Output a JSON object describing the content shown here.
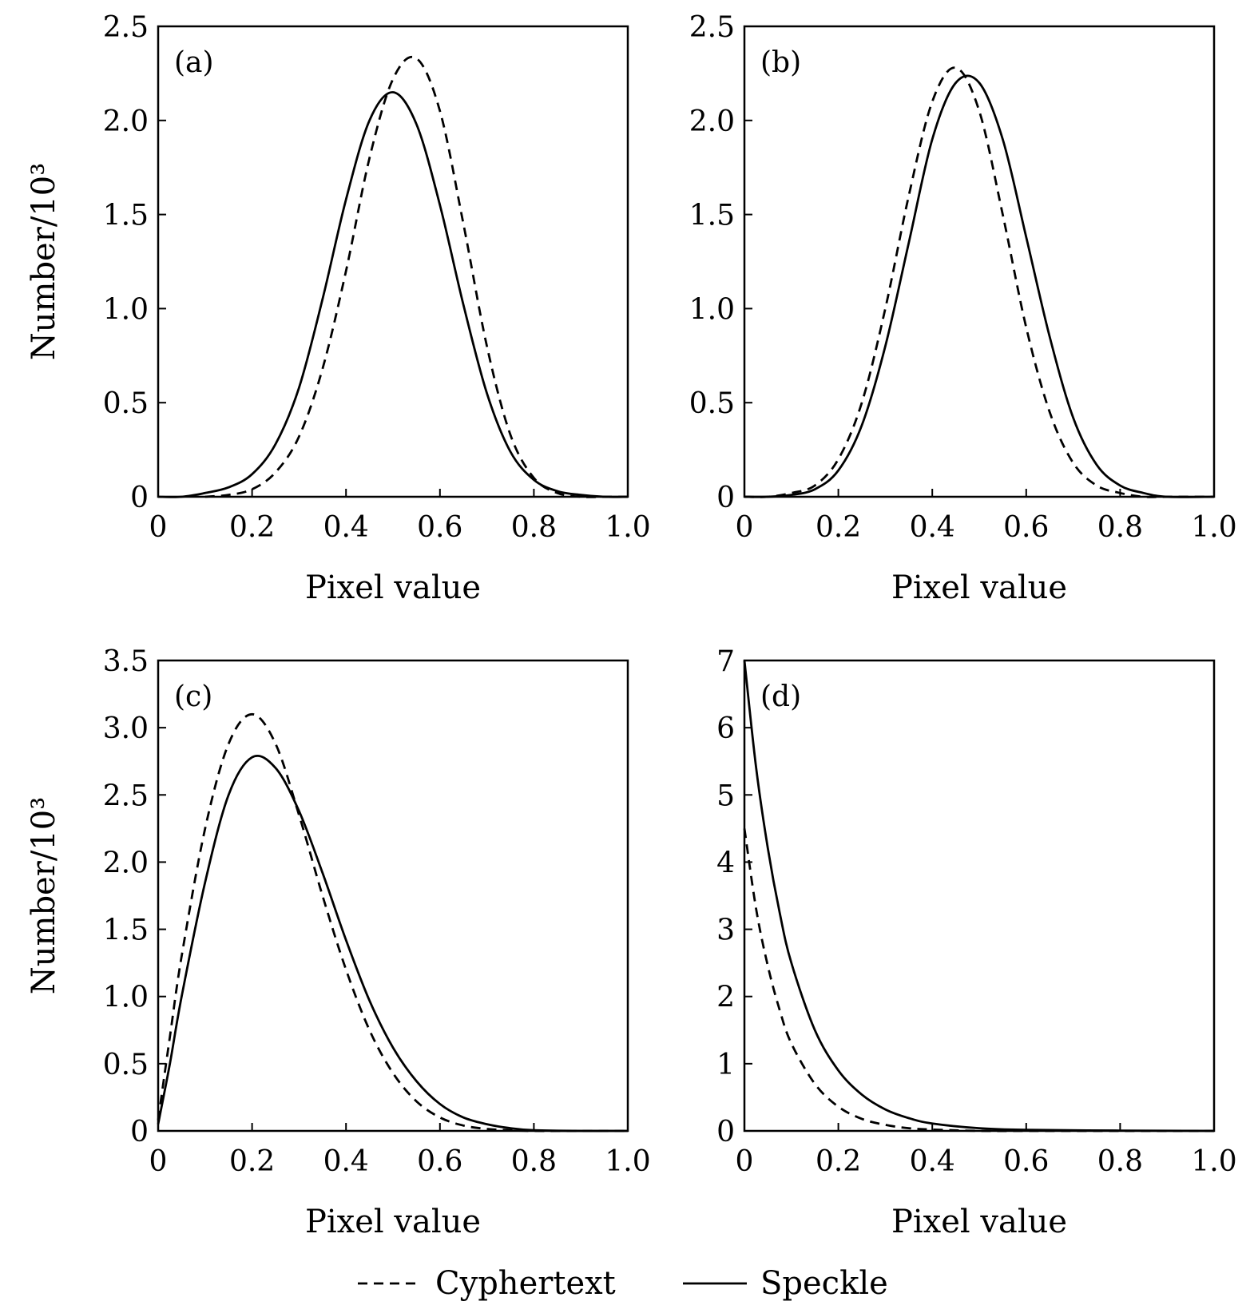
{
  "legend": {
    "cyphertext_label": "Cyphertext",
    "speckle_label": "Speckle"
  },
  "chart_data": [
    {
      "type": "line",
      "panel_label": "(a)",
      "xlabel": "Pixel value",
      "ylabel": "Number/10³",
      "xlim": [
        0,
        1.0
      ],
      "ylim": [
        0,
        2.5
      ],
      "x_ticks": [
        0,
        0.2,
        0.4,
        0.6,
        0.8,
        1.0
      ],
      "x_tick_labels": [
        "0",
        "0.2",
        "0.4",
        "0.6",
        "0.8",
        "1.0"
      ],
      "y_ticks": [
        0,
        0.5,
        1.0,
        1.5,
        2.0,
        2.5
      ],
      "y_tick_labels": [
        "0",
        "0.5",
        "1.0",
        "1.5",
        "2.0",
        "2.5"
      ],
      "series": [
        {
          "name": "Cyphertext",
          "style": "dashed",
          "x": [
            0.1,
            0.15,
            0.2,
            0.25,
            0.3,
            0.35,
            0.4,
            0.45,
            0.5,
            0.55,
            0.6,
            0.65,
            0.7,
            0.75,
            0.8,
            0.85,
            0.9,
            0.95,
            1.0
          ],
          "y": [
            0.0,
            0.01,
            0.04,
            0.13,
            0.32,
            0.68,
            1.2,
            1.8,
            2.22,
            2.33,
            2.05,
            1.45,
            0.8,
            0.33,
            0.1,
            0.02,
            0.0,
            0.0,
            0.0
          ]
        },
        {
          "name": "Speckle",
          "style": "solid",
          "x": [
            0.0,
            0.05,
            0.1,
            0.15,
            0.2,
            0.25,
            0.3,
            0.35,
            0.4,
            0.45,
            0.5,
            0.55,
            0.6,
            0.65,
            0.7,
            0.75,
            0.8,
            0.85,
            0.9,
            0.95,
            1.0
          ],
          "y": [
            0.0,
            0.0,
            0.02,
            0.05,
            0.12,
            0.28,
            0.58,
            1.05,
            1.58,
            2.0,
            2.15,
            1.98,
            1.55,
            1.02,
            0.55,
            0.24,
            0.09,
            0.03,
            0.01,
            0.0,
            0.0
          ]
        }
      ]
    },
    {
      "type": "line",
      "panel_label": "(b)",
      "xlabel": "Pixel value",
      "ylabel": "",
      "xlim": [
        0,
        1.0
      ],
      "ylim": [
        0,
        2.5
      ],
      "x_ticks": [
        0,
        0.2,
        0.4,
        0.6,
        0.8,
        1.0
      ],
      "x_tick_labels": [
        "0",
        "0.2",
        "0.4",
        "0.6",
        "0.8",
        "1.0"
      ],
      "y_ticks": [
        0,
        0.5,
        1.0,
        1.5,
        2.0,
        2.5
      ],
      "y_tick_labels": [
        "0",
        "0.5",
        "1.0",
        "1.5",
        "2.0",
        "2.5"
      ],
      "series": [
        {
          "name": "Cyphertext",
          "style": "dashed",
          "x": [
            0.0,
            0.05,
            0.1,
            0.15,
            0.2,
            0.25,
            0.3,
            0.35,
            0.4,
            0.45,
            0.5,
            0.55,
            0.6,
            0.65,
            0.7,
            0.75,
            0.8,
            0.85,
            0.9,
            1.0
          ],
          "y": [
            0.0,
            0.0,
            0.02,
            0.06,
            0.2,
            0.5,
            1.0,
            1.6,
            2.1,
            2.28,
            2.05,
            1.5,
            0.9,
            0.45,
            0.18,
            0.06,
            0.02,
            0.0,
            0.0,
            0.0
          ]
        },
        {
          "name": "Speckle",
          "style": "solid",
          "x": [
            0.0,
            0.05,
            0.1,
            0.15,
            0.2,
            0.25,
            0.3,
            0.35,
            0.4,
            0.45,
            0.5,
            0.55,
            0.6,
            0.65,
            0.7,
            0.75,
            0.8,
            0.85,
            0.9,
            1.0
          ],
          "y": [
            0.0,
            0.0,
            0.01,
            0.04,
            0.14,
            0.38,
            0.8,
            1.35,
            1.9,
            2.2,
            2.2,
            1.9,
            1.38,
            0.85,
            0.42,
            0.17,
            0.06,
            0.02,
            0.0,
            0.0
          ]
        }
      ]
    },
    {
      "type": "line",
      "panel_label": "(c)",
      "xlabel": "Pixel value",
      "ylabel": "Number/10³",
      "xlim": [
        0,
        1.0
      ],
      "ylim": [
        0,
        3.5
      ],
      "x_ticks": [
        0,
        0.2,
        0.4,
        0.6,
        0.8,
        1.0
      ],
      "x_tick_labels": [
        "0",
        "0.2",
        "0.4",
        "0.6",
        "0.8",
        "1.0"
      ],
      "y_ticks": [
        0,
        0.5,
        1.0,
        1.5,
        2.0,
        2.5,
        3.0,
        3.5
      ],
      "y_tick_labels": [
        "0",
        "0.5",
        "1.0",
        "1.5",
        "2.0",
        "2.5",
        "3.0",
        "3.5"
      ],
      "series": [
        {
          "name": "Cyphertext",
          "style": "dashed",
          "x": [
            0.0,
            0.025,
            0.05,
            0.1,
            0.15,
            0.2,
            0.25,
            0.3,
            0.35,
            0.4,
            0.45,
            0.5,
            0.55,
            0.6,
            0.65,
            0.7,
            0.75,
            0.8,
            0.9,
            1.0
          ],
          "y": [
            0.08,
            0.7,
            1.3,
            2.25,
            2.88,
            3.1,
            2.88,
            2.35,
            1.75,
            1.2,
            0.75,
            0.43,
            0.22,
            0.1,
            0.04,
            0.015,
            0.005,
            0.0,
            0.0,
            0.0
          ]
        },
        {
          "name": "Speckle",
          "style": "solid",
          "x": [
            0.0,
            0.025,
            0.05,
            0.1,
            0.15,
            0.2,
            0.25,
            0.3,
            0.35,
            0.4,
            0.45,
            0.5,
            0.55,
            0.6,
            0.65,
            0.7,
            0.75,
            0.8,
            0.9,
            1.0
          ],
          "y": [
            0.05,
            0.5,
            1.0,
            1.85,
            2.5,
            2.78,
            2.7,
            2.38,
            1.92,
            1.42,
            0.97,
            0.62,
            0.37,
            0.2,
            0.1,
            0.05,
            0.02,
            0.005,
            0.0,
            0.0
          ]
        }
      ]
    },
    {
      "type": "line",
      "panel_label": "(d)",
      "xlabel": "Pixel value",
      "ylabel": "",
      "xlim": [
        0,
        1.0
      ],
      "ylim": [
        0,
        7
      ],
      "x_ticks": [
        0,
        0.2,
        0.4,
        0.6,
        0.8,
        1.0
      ],
      "x_tick_labels": [
        "0",
        "0.2",
        "0.4",
        "0.6",
        "0.8",
        "1.0"
      ],
      "y_ticks": [
        0,
        1,
        2,
        3,
        4,
        5,
        6,
        7
      ],
      "y_tick_labels": [
        "0",
        "1",
        "2",
        "3",
        "4",
        "5",
        "6",
        "7"
      ],
      "series": [
        {
          "name": "Cyphertext",
          "style": "dashed",
          "x": [
            0.0,
            0.025,
            0.05,
            0.075,
            0.1,
            0.15,
            0.2,
            0.25,
            0.3,
            0.35,
            0.4,
            0.5,
            0.6,
            0.8,
            1.0
          ],
          "y": [
            4.5,
            3.3,
            2.45,
            1.8,
            1.3,
            0.7,
            0.36,
            0.18,
            0.09,
            0.04,
            0.02,
            0.0,
            0.0,
            0.0,
            0.0
          ]
        },
        {
          "name": "Speckle",
          "style": "solid",
          "x": [
            0.0,
            0.025,
            0.05,
            0.075,
            0.1,
            0.15,
            0.2,
            0.25,
            0.3,
            0.35,
            0.4,
            0.5,
            0.6,
            0.8,
            1.0
          ],
          "y": [
            7.0,
            5.4,
            4.2,
            3.25,
            2.5,
            1.5,
            0.9,
            0.54,
            0.32,
            0.19,
            0.11,
            0.04,
            0.015,
            0.005,
            0.0
          ]
        }
      ]
    }
  ]
}
